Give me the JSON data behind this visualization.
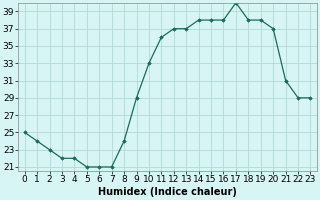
{
  "x": [
    0,
    1,
    2,
    3,
    4,
    5,
    6,
    7,
    8,
    9,
    10,
    11,
    12,
    13,
    14,
    15,
    16,
    17,
    18,
    19,
    20,
    21,
    22,
    23
  ],
  "y": [
    25,
    24,
    23,
    22,
    22,
    21,
    21,
    21,
    24,
    29,
    33,
    36,
    37,
    37,
    38,
    38,
    38,
    40,
    38,
    38,
    37,
    31,
    29,
    29
  ],
  "line_color": "#1a6b5a",
  "marker": "D",
  "marker_size": 1.8,
  "bg_color": "#d8f5f5",
  "grid_color": "#b0d8d8",
  "xlabel": "Humidex (Indice chaleur)",
  "ylabel": "",
  "title": "",
  "xlim": [
    -0.5,
    23.5
  ],
  "ylim": [
    20.5,
    40.0
  ],
  "yticks": [
    21,
    23,
    25,
    27,
    29,
    31,
    33,
    35,
    37,
    39
  ],
  "xtick_labels": [
    "0",
    "1",
    "2",
    "3",
    "4",
    "5",
    "6",
    "7",
    "8",
    "9",
    "10",
    "11",
    "12",
    "13",
    "14",
    "15",
    "16",
    "17",
    "18",
    "19",
    "20",
    "21",
    "22",
    "23"
  ],
  "xlabel_fontsize": 7,
  "tick_fontsize": 6.5
}
